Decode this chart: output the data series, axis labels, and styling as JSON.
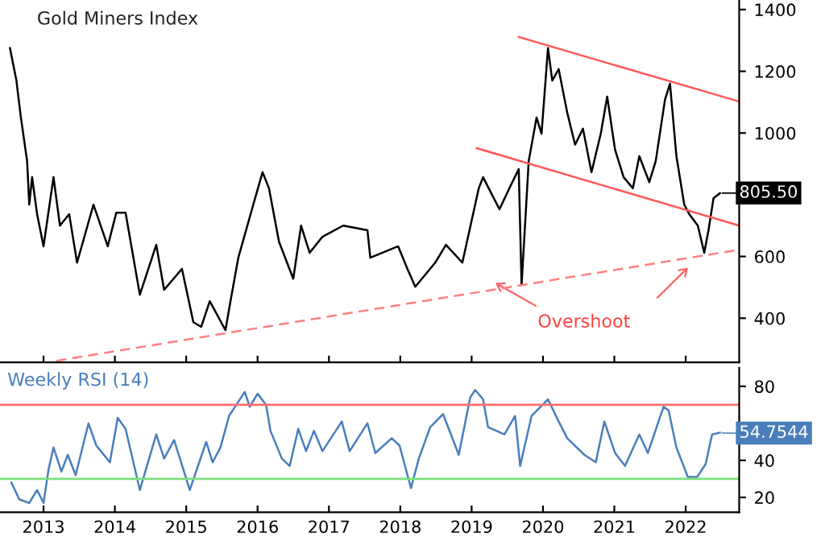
{
  "chart_data": [
    {
      "type": "line",
      "title": "Gold Miners Index",
      "xlim": [
        2012.39,
        2022.75
      ],
      "ylim": [
        257,
        1431
      ],
      "yticks": [
        400,
        600,
        {
          "value": 800,
          "label": null
        },
        1000,
        1200,
        1400
      ],
      "xticks": [
        2013,
        2014,
        2015,
        2016,
        2017,
        2018,
        2019,
        2020,
        2021,
        2022
      ],
      "tick_labels": "y",
      "grid": false,
      "legend": false,
      "series": [
        {
          "color": "#000000",
          "x": [
            2012.53,
            2012.62,
            2012.68,
            2012.77,
            2012.8,
            2012.84,
            2012.91,
            2013.0,
            2013.14,
            2013.23,
            2013.36,
            2013.47,
            2013.7,
            2013.9,
            2014.02,
            2014.15,
            2014.35,
            2014.58,
            2014.69,
            2014.94,
            2015.1,
            2015.21,
            2015.33,
            2015.55,
            2015.62,
            2015.73,
            2015.94,
            2016.07,
            2016.16,
            2016.3,
            2016.5,
            2016.61,
            2016.73,
            2016.91,
            2017.2,
            2017.54,
            2017.58,
            2017.97,
            2018.1,
            2018.21,
            2018.49,
            2018.64,
            2018.87,
            2019.1,
            2019.16,
            2019.39,
            2019.55,
            2019.66,
            2019.7,
            2019.8,
            2019.91,
            2019.98,
            2020.07,
            2020.13,
            2020.22,
            2020.34,
            2020.45,
            2020.56,
            2020.68,
            2020.81,
            2020.9,
            2021.01,
            2021.13,
            2021.26,
            2021.35,
            2021.49,
            2021.58,
            2021.71,
            2021.78,
            2021.87,
            2021.98,
            2022.05,
            2022.17,
            2022.26,
            2022.32,
            2022.39,
            2022.48
          ],
          "values": [
            1275,
            1170,
            1055,
            909,
            768,
            857,
            737,
            633,
            857,
            700,
            737,
            580,
            768,
            633,
            742,
            742,
            476,
            638,
            492,
            560,
            387,
            372,
            455,
            361,
            455,
            596,
            768,
            873,
            821,
            648,
            528,
            700,
            612,
            664,
            700,
            685,
            596,
            633,
            560,
            502,
            580,
            638,
            580,
            821,
            857,
            753,
            831,
            883,
            507,
            909,
            1050,
            998,
            1275,
            1170,
            1207,
            1066,
            962,
            1014,
            873,
            998,
            1118,
            946,
            857,
            821,
            925,
            841,
            909,
            1108,
            1160,
            925,
            768,
            737,
            700,
            612,
            685,
            789,
            805
          ]
        },
        {
          "color": "#ff5a5a",
          "line_style": "solid",
          "x": [
            2019.66,
            2022.75
          ],
          "values": [
            1311,
            1102
          ]
        },
        {
          "color": "#ff5a5a",
          "line_style": "solid",
          "x": [
            2019.07,
            2022.75
          ],
          "values": [
            951,
            700
          ]
        },
        {
          "color": "#ff8080",
          "line_style": "dashed",
          "x": [
            2013.18,
            2022.75
          ],
          "values": [
            262,
            622
          ]
        }
      ],
      "annotations": [
        "Overshoot",
        {
          "text": "805.50",
          "x": 2022.48,
          "y": 805.5
        }
      ]
    },
    {
      "type": "line",
      "title": "Weekly RSI (14)",
      "xlim": [
        2012.39,
        2022.75
      ],
      "ylim": [
        12,
        90
      ],
      "yticks": [
        20,
        40,
        {
          "value": 60,
          "label": null
        },
        80
      ],
      "xticks": [
        2013,
        2014,
        2015,
        2016,
        2017,
        2018,
        2019,
        2020,
        2021,
        2022
      ],
      "grid": false,
      "legend": false,
      "series": [
        {
          "color": "#4a7ebb",
          "x": [
            2012.55,
            2012.66,
            2012.8,
            2012.91,
            2013.0,
            2013.07,
            2013.14,
            2013.25,
            2013.34,
            2013.45,
            2013.63,
            2013.74,
            2013.93,
            2014.04,
            2014.15,
            2014.35,
            2014.58,
            2014.69,
            2014.83,
            2015.05,
            2015.28,
            2015.37,
            2015.48,
            2015.6,
            2015.82,
            2015.89,
            2016.0,
            2016.12,
            2016.18,
            2016.34,
            2016.45,
            2016.57,
            2016.68,
            2016.79,
            2016.91,
            2017.18,
            2017.29,
            2017.54,
            2017.65,
            2017.88,
            2017.99,
            2018.15,
            2018.26,
            2018.42,
            2018.6,
            2018.82,
            2018.98,
            2019.05,
            2019.16,
            2019.23,
            2019.46,
            2019.61,
            2019.68,
            2019.84,
            2020.07,
            2020.22,
            2020.34,
            2020.58,
            2020.74,
            2020.86,
            2021.01,
            2021.15,
            2021.35,
            2021.47,
            2021.69,
            2021.76,
            2021.87,
            2022.03,
            2022.16,
            2022.28,
            2022.37,
            2022.48
          ],
          "values": [
            28,
            19,
            17,
            24,
            17,
            35,
            47,
            34,
            43,
            32,
            60,
            48,
            39,
            63,
            57,
            24,
            54,
            41,
            51,
            24,
            50,
            39,
            47,
            64,
            77,
            69,
            76,
            70,
            56,
            41,
            37,
            57,
            45,
            56,
            45,
            61,
            45,
            60,
            44,
            52,
            48,
            25,
            41,
            58,
            65,
            43,
            74,
            78,
            73,
            58,
            54,
            64,
            37,
            64,
            73,
            61,
            52,
            43,
            39,
            61,
            44,
            37,
            54,
            44,
            69,
            67,
            47,
            31,
            31,
            38,
            54,
            55
          ]
        }
      ],
      "ref_lines": [
        {
          "axis": "y",
          "value": 70,
          "color": "#ff6f6f"
        },
        {
          "axis": "y",
          "value": 30,
          "color": "#7be07b"
        }
      ],
      "annotations": [
        {
          "text": "54.7544",
          "x": 2022.48,
          "y": 54.7544
        }
      ]
    }
  ]
}
